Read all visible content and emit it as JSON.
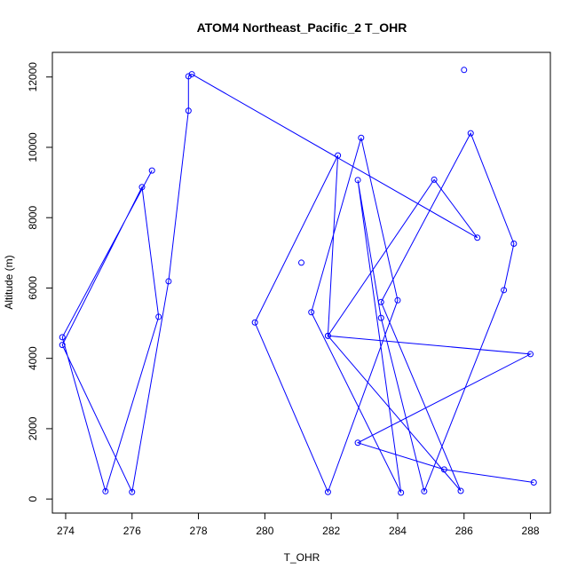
{
  "chart_data": {
    "type": "line",
    "title": "ATOM4 Northeast_Pacific_2 T_OHR",
    "xlabel": "T_OHR",
    "ylabel": "Altitude (m)",
    "xlim": [
      273.6,
      288.6
    ],
    "ylim": [
      -400,
      12700
    ],
    "x_ticks": [
      274,
      276,
      278,
      280,
      282,
      284,
      286,
      288
    ],
    "y_ticks": [
      0,
      2000,
      4000,
      6000,
      8000,
      10000,
      12000
    ],
    "grid": false,
    "series_color": "#0000ff",
    "marker": "open-circle",
    "points": [
      {
        "x": 288.1,
        "y": 470
      },
      {
        "x": 285.4,
        "y": 840
      },
      {
        "x": 282.8,
        "y": 1600
      },
      {
        "x": 288.0,
        "y": 4120
      },
      {
        "x": 281.9,
        "y": 4640
      },
      {
        "x": 285.9,
        "y": 230
      },
      {
        "x": 283.5,
        "y": 5600
      },
      {
        "x": 286.2,
        "y": 10400
      },
      {
        "x": 287.5,
        "y": 7260
      },
      {
        "x": 287.2,
        "y": 5940
      },
      {
        "x": 284.8,
        "y": 220
      },
      {
        "x": 283.5,
        "y": 5150
      },
      {
        "x": 282.8,
        "y": 9070
      },
      {
        "x": 284.1,
        "y": 180
      },
      {
        "x": 281.4,
        "y": 5310
      },
      {
        "x": 282.9,
        "y": 10270
      },
      {
        "x": 284.0,
        "y": 5650
      },
      {
        "x": 281.9,
        "y": 200
      },
      {
        "x": 279.7,
        "y": 5020
      },
      {
        "x": 282.2,
        "y": 9770
      },
      {
        "x": 281.9,
        "y": 4640
      },
      {
        "x": 285.1,
        "y": 9080
      },
      {
        "x": 286.4,
        "y": 7430
      },
      {
        "x": 277.8,
        "y": 12080
      },
      {
        "x": 277.7,
        "y": 12020
      },
      {
        "x": 277.7,
        "y": 11040
      },
      {
        "x": 277.1,
        "y": 6190
      },
      {
        "x": 276.0,
        "y": 200
      },
      {
        "x": 273.9,
        "y": 4380
      },
      {
        "x": 276.3,
        "y": 8870
      },
      {
        "x": 276.8,
        "y": 5180
      },
      {
        "x": 275.2,
        "y": 220
      },
      {
        "x": 273.9,
        "y": 4600
      },
      {
        "x": 276.6,
        "y": 9340
      }
    ],
    "extra_points": [
      {
        "x": 281.1,
        "y": 6720
      },
      {
        "x": 286.0,
        "y": 12200
      }
    ]
  }
}
